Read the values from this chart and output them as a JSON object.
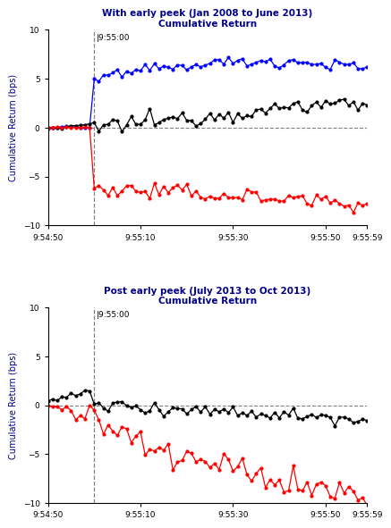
{
  "title1_line1": "With early peek (Jan 2008 to June 2013)",
  "title1_line2": "Cumulative Return",
  "title2_line1": "Post early peek (July 2013 to Oct 2013)",
  "title2_line2": "Cumulative Return",
  "ylabel": "Cumulative Return (bps)",
  "vline_label": "|9:55:00",
  "xtick_labels": [
    "9:54:50",
    "9:55:10",
    "9:55:30",
    "9:55:50",
    "9:55:59"
  ],
  "ylim": [
    -10,
    10
  ],
  "yticks": [
    -10,
    -5,
    0,
    5,
    10
  ],
  "n_points": 70,
  "vline_x": 10,
  "title_color": "#00008B",
  "axis_label_color": "#00008B",
  "background_color": "#ffffff",
  "title_fontsize": 7.5,
  "tick_fontsize": 6.5,
  "ylabel_fontsize": 7.0
}
